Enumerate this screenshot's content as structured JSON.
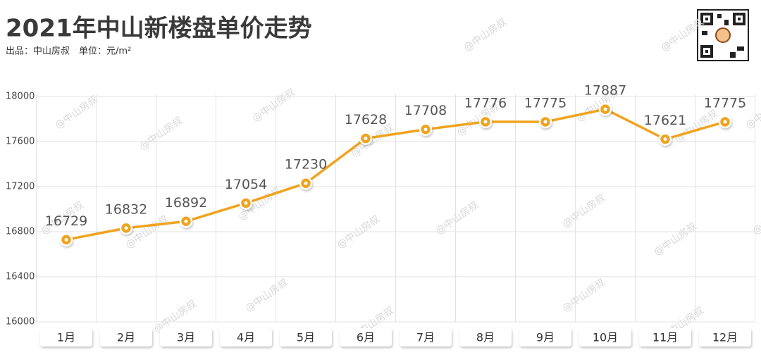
{
  "chart_data": {
    "type": "line",
    "title": "2021年中山新楼盘单价走势",
    "subtitle": "出品：中山房叔　单位：元/m²",
    "watermark": "@中山房叔",
    "categories": [
      "1月",
      "2月",
      "3月",
      "4月",
      "5月",
      "6月",
      "7月",
      "8月",
      "9月",
      "10月",
      "11月",
      "12月"
    ],
    "series": [
      {
        "color": "#f0a31e",
        "values": [
          16729,
          16832,
          16892,
          17054,
          17230,
          17628,
          17708,
          17776,
          17775,
          17887,
          17621,
          17775
        ]
      }
    ],
    "ylim": [
      16000,
      18000
    ],
    "yticks": [
      16000,
      16400,
      16800,
      17200,
      17600,
      18000
    ],
    "grid": true
  }
}
